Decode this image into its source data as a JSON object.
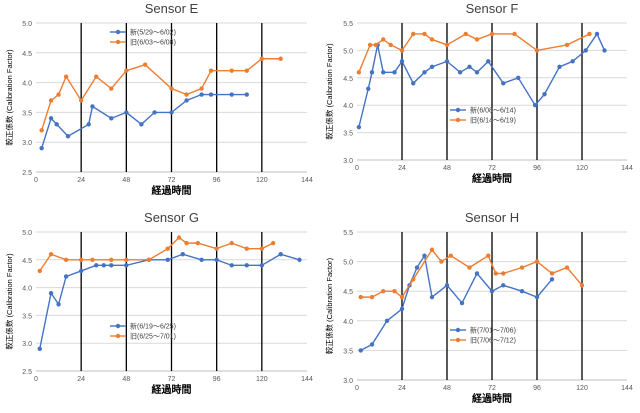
{
  "colors": {
    "new": "#4472c4",
    "old": "#ed7d31",
    "grid_major": "#000000",
    "grid_minor": "#d9d9d9",
    "text": "#000000",
    "tick": "#595959"
  },
  "chart_data": [
    {
      "id": "sensor-e",
      "type": "line",
      "title": "Sensor E",
      "xlabel": "経過時間",
      "ylabel": "較正係数 (Calibration Factor)",
      "xlim": [
        0,
        144
      ],
      "ylim": [
        2.5,
        5.0
      ],
      "xticks": [
        0,
        24,
        48,
        72,
        96,
        120,
        144
      ],
      "xtick_labels": [
        "0",
        "24",
        "48",
        "72",
        "96",
        "120",
        "144"
      ],
      "yticks": [
        2.5,
        3.0,
        3.5,
        4.0,
        4.5,
        5.0
      ],
      "ytick_labels": [
        "2.5",
        "3.0",
        "3.5",
        "4.0",
        "4.5",
        "5.0"
      ],
      "legend_position": "top-center",
      "series": [
        {
          "name": "新(5/29～6/02)",
          "color": "#4472c4",
          "x": [
            3,
            8,
            11,
            17,
            28,
            30,
            40,
            48,
            56,
            63,
            72,
            80,
            88,
            93,
            104,
            112
          ],
          "y": [
            2.9,
            3.4,
            3.3,
            3.1,
            3.3,
            3.6,
            3.4,
            3.5,
            3.3,
            3.5,
            3.5,
            3.7,
            3.8,
            3.8,
            3.8,
            3.8
          ]
        },
        {
          "name": "旧(6/03～6/08)",
          "color": "#ed7d31",
          "x": [
            3,
            8,
            12,
            16,
            24,
            32,
            40,
            48,
            58,
            72,
            80,
            88,
            93,
            104,
            112,
            120,
            130
          ],
          "y": [
            3.2,
            3.7,
            3.8,
            4.1,
            3.7,
            4.1,
            3.9,
            4.2,
            4.3,
            3.9,
            3.8,
            3.9,
            4.2,
            4.2,
            4.2,
            4.4,
            4.4
          ]
        }
      ]
    },
    {
      "id": "sensor-f",
      "type": "line",
      "title": "Sensor F",
      "xlabel": "経過時間",
      "ylabel": "較正係数 (Calibration Factor)",
      "xlim": [
        0,
        144
      ],
      "ylim": [
        3.0,
        5.5
      ],
      "xticks": [
        0,
        24,
        48,
        72,
        96,
        120,
        144
      ],
      "xtick_labels": [
        "0",
        "24",
        "48",
        "72",
        "96",
        "120",
        "144"
      ],
      "yticks": [
        3.0,
        3.5,
        4.0,
        4.5,
        5.0,
        5.5
      ],
      "ytick_labels": [
        "3.0",
        "3.5",
        "4.0",
        "4.5",
        "5.0",
        "5.5"
      ],
      "legend_position": "bottom-center",
      "series": [
        {
          "name": "新(6/08～6/14)",
          "color": "#4472c4",
          "x": [
            1,
            6,
            8,
            11,
            14,
            20,
            24,
            30,
            36,
            40,
            48,
            55,
            60,
            64,
            70,
            78,
            86,
            95,
            100,
            108,
            115,
            122,
            128,
            132
          ],
          "y": [
            3.6,
            4.3,
            4.6,
            5.1,
            4.6,
            4.6,
            4.8,
            4.4,
            4.6,
            4.7,
            4.8,
            4.6,
            4.7,
            4.6,
            4.8,
            4.4,
            4.5,
            4.0,
            4.2,
            4.7,
            4.8,
            5.0,
            5.3,
            5.0
          ]
        },
        {
          "name": "旧(6/14～6/19)",
          "color": "#ed7d31",
          "x": [
            1,
            7,
            10,
            14,
            18,
            24,
            30,
            36,
            40,
            48,
            58,
            64,
            72,
            84,
            96,
            112,
            124
          ],
          "y": [
            4.6,
            5.1,
            5.1,
            5.2,
            5.1,
            5.0,
            5.3,
            5.3,
            5.2,
            5.1,
            5.3,
            5.2,
            5.3,
            5.3,
            5.0,
            5.1,
            5.3
          ]
        }
      ]
    },
    {
      "id": "sensor-g",
      "type": "line",
      "title": "Sensor G",
      "xlabel": "経過時間",
      "ylabel": "較正係数 (Calibration Factor)",
      "xlim": [
        0,
        144
      ],
      "ylim": [
        2.5,
        5.0
      ],
      "xticks": [
        0,
        24,
        48,
        72,
        96,
        120,
        144
      ],
      "xtick_labels": [
        "0",
        "24",
        "48",
        "72",
        "96",
        "120",
        "144"
      ],
      "yticks": [
        2.5,
        3.0,
        3.5,
        4.0,
        4.5,
        5.0
      ],
      "ytick_labels": [
        "2.5",
        "3.0",
        "3.5",
        "4.0",
        "4.5",
        "5.0"
      ],
      "legend_position": "bottom-center",
      "series": [
        {
          "name": "新(6/19～6/25)",
          "color": "#4472c4",
          "x": [
            2,
            8,
            12,
            16,
            24,
            32,
            36,
            40,
            48,
            60,
            70,
            78,
            88,
            96,
            104,
            112,
            120,
            130,
            140
          ],
          "y": [
            2.9,
            3.9,
            3.7,
            4.2,
            4.3,
            4.4,
            4.4,
            4.4,
            4.4,
            4.5,
            4.5,
            4.6,
            4.5,
            4.5,
            4.4,
            4.4,
            4.4,
            4.6,
            4.5
          ]
        },
        {
          "name": "旧(6/25～7/01)",
          "color": "#ed7d31",
          "x": [
            2,
            8,
            16,
            24,
            30,
            40,
            48,
            60,
            70,
            76,
            80,
            86,
            96,
            104,
            112,
            120,
            126
          ],
          "y": [
            4.3,
            4.6,
            4.5,
            4.5,
            4.5,
            4.5,
            4.5,
            4.5,
            4.7,
            4.9,
            4.8,
            4.8,
            4.7,
            4.8,
            4.7,
            4.7,
            4.8
          ]
        }
      ]
    },
    {
      "id": "sensor-h",
      "type": "line",
      "title": "Sensor H",
      "xlabel": "経過時間",
      "ylabel": "較正係数 (Calibration Factor)",
      "xlim": [
        0,
        144
      ],
      "ylim": [
        3.0,
        5.5
      ],
      "xticks": [
        0,
        24,
        48,
        72,
        96,
        120,
        144
      ],
      "xtick_labels": [
        "0",
        "24",
        "48",
        "72",
        "96",
        "120",
        "144"
      ],
      "yticks": [
        3.0,
        3.5,
        4.0,
        4.5,
        5.0,
        5.5
      ],
      "ytick_labels": [
        "3.0",
        "3.5",
        "4.0",
        "4.5",
        "5.0",
        "5.5"
      ],
      "legend_position": "bottom-center",
      "series": [
        {
          "name": "新(7/01～7/06)",
          "color": "#4472c4",
          "x": [
            2,
            8,
            16,
            24,
            28,
            32,
            36,
            40,
            48,
            56,
            64,
            72,
            78,
            88,
            96,
            104
          ],
          "y": [
            3.5,
            3.6,
            4.0,
            4.2,
            4.6,
            4.9,
            5.1,
            4.4,
            4.6,
            4.3,
            4.8,
            4.5,
            4.6,
            4.5,
            4.4,
            4.7
          ]
        },
        {
          "name": "旧(7/06～7/12)",
          "color": "#ed7d31",
          "x": [
            2,
            8,
            14,
            20,
            24,
            30,
            40,
            45,
            50,
            60,
            70,
            74,
            78,
            88,
            96,
            104,
            112,
            120
          ],
          "y": [
            4.4,
            4.4,
            4.5,
            4.5,
            4.4,
            4.7,
            5.2,
            5.0,
            5.1,
            4.9,
            5.1,
            4.8,
            4.8,
            4.9,
            5.0,
            4.8,
            4.9,
            4.6
          ]
        }
      ]
    }
  ]
}
